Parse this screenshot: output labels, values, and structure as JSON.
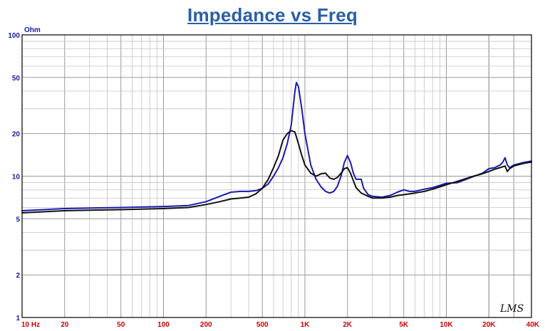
{
  "chart_data": {
    "type": "line",
    "title": "Impedance vs Freq",
    "y_unit": "Ohm",
    "watermark": "LMS",
    "x_scale": "log",
    "y_scale": "log",
    "xlim": [
      10,
      40000
    ],
    "ylim": [
      1,
      100
    ],
    "grid": true,
    "x_ticks": [
      {
        "value": 10,
        "label": "10  Hz"
      },
      {
        "value": 20,
        "label": "20"
      },
      {
        "value": 50,
        "label": "50"
      },
      {
        "value": 100,
        "label": "100"
      },
      {
        "value": 200,
        "label": "200"
      },
      {
        "value": 500,
        "label": "500"
      },
      {
        "value": 1000,
        "label": "1K"
      },
      {
        "value": 2000,
        "label": "2K"
      },
      {
        "value": 5000,
        "label": "5K"
      },
      {
        "value": 10000,
        "label": "10K"
      },
      {
        "value": 20000,
        "label": "20K"
      },
      {
        "value": 40000,
        "label": "40K"
      }
    ],
    "y_ticks": [
      {
        "value": 100,
        "label": "100"
      },
      {
        "value": 50,
        "label": "50"
      },
      {
        "value": 20,
        "label": "20"
      },
      {
        "value": 10,
        "label": "10"
      },
      {
        "value": 5,
        "label": "5"
      },
      {
        "value": 2,
        "label": "2"
      },
      {
        "value": 1,
        "label": "1"
      }
    ],
    "series": [
      {
        "color": "#1a1ab0",
        "x": [
          10,
          20,
          50,
          100,
          150,
          200,
          250,
          300,
          350,
          400,
          450,
          500,
          550,
          600,
          650,
          700,
          750,
          800,
          850,
          870,
          900,
          950,
          1000,
          1100,
          1200,
          1300,
          1400,
          1500,
          1600,
          1700,
          1800,
          1900,
          2000,
          2100,
          2200,
          2300,
          2500,
          2600,
          2800,
          3000,
          3500,
          4000,
          4500,
          5000,
          5500,
          6000,
          7000,
          8000,
          9000,
          10000,
          12000,
          15000,
          18000,
          20000,
          22000,
          24000,
          25000,
          26000,
          27000,
          28000,
          30000,
          35000,
          40000
        ],
        "y": [
          5.7,
          5.9,
          6.0,
          6.1,
          6.2,
          6.6,
          7.2,
          7.7,
          7.8,
          7.8,
          7.9,
          8.2,
          8.8,
          10.0,
          11.5,
          13.5,
          17.0,
          23.0,
          40.0,
          46.0,
          43.0,
          30.0,
          20.0,
          12.0,
          9.5,
          8.4,
          7.8,
          7.6,
          7.8,
          8.5,
          10.0,
          12.5,
          14.0,
          12.5,
          10.5,
          9.5,
          9.5,
          8.2,
          7.4,
          7.2,
          7.1,
          7.3,
          7.7,
          8.0,
          7.8,
          7.8,
          8.1,
          8.3,
          8.6,
          8.9,
          9.0,
          9.8,
          10.5,
          11.3,
          11.5,
          12.0,
          12.5,
          13.5,
          12.0,
          11.5,
          12.0,
          12.5,
          12.8
        ]
      },
      {
        "color": "#111111",
        "x": [
          10,
          20,
          50,
          100,
          150,
          200,
          250,
          300,
          350,
          400,
          450,
          500,
          550,
          600,
          650,
          700,
          750,
          800,
          850,
          900,
          950,
          1000,
          1100,
          1200,
          1300,
          1400,
          1500,
          1600,
          1700,
          1800,
          1900,
          2000,
          2100,
          2200,
          2300,
          2500,
          2800,
          3000,
          3500,
          4000,
          4500,
          5000,
          6000,
          7000,
          8000,
          9000,
          10000,
          12000,
          15000,
          18000,
          20000,
          22000,
          24000,
          26000,
          27000,
          28000,
          30000,
          35000,
          40000
        ],
        "y": [
          5.5,
          5.7,
          5.8,
          5.9,
          6.0,
          6.3,
          6.6,
          6.9,
          7.0,
          7.1,
          7.5,
          8.2,
          9.5,
          11.5,
          14.0,
          18.0,
          20.0,
          21.0,
          20.5,
          17.0,
          14.0,
          12.0,
          10.5,
          10.0,
          10.4,
          10.5,
          9.7,
          9.5,
          9.8,
          10.5,
          11.3,
          11.5,
          10.5,
          9.3,
          8.3,
          7.6,
          7.2,
          7.0,
          7.0,
          7.1,
          7.3,
          7.4,
          7.6,
          7.8,
          8.1,
          8.4,
          8.7,
          9.2,
          9.9,
          10.4,
          10.8,
          11.2,
          11.5,
          11.8,
          10.8,
          11.3,
          11.8,
          12.3,
          12.6
        ]
      }
    ]
  }
}
